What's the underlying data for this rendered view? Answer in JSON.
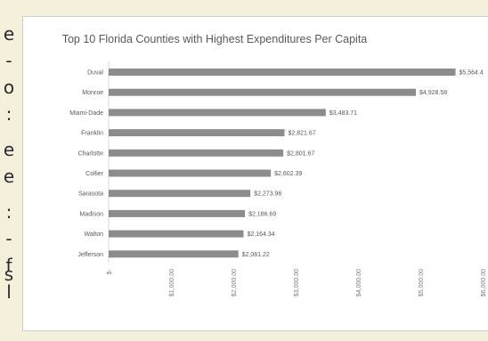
{
  "side_text": [
    "e",
    "-",
    "o",
    ":",
    "e",
    "e",
    ":",
    "-",
    "f",
    "s",
    "l"
  ],
  "chart_data": {
    "type": "bar",
    "orientation": "horizontal",
    "title": "Top 10 Florida Counties with Highest Expenditures Per Capita",
    "xlabel": "",
    "ylabel": "",
    "categories": [
      "Duval",
      "Monroe",
      "Miami-Dade",
      "Franklin",
      "Charlotte",
      "Collier",
      "Sarasota",
      "Madison",
      "Walton",
      "Jefferson"
    ],
    "values": [
      5564.4,
      4928.58,
      3483.71,
      2821.67,
      2801.67,
      2602.39,
      2273.96,
      2186.69,
      2164.34,
      2081.22
    ],
    "value_labels": [
      "$5,564.4",
      "$4,928.58",
      "$3,483.71",
      "$2,821.67",
      "$2,801.67",
      "$2,602.39",
      "$2,273.96",
      "$2,186.69",
      "$2,164.34",
      "$2,081.22"
    ],
    "xlim": [
      0,
      6000
    ],
    "xticks": [
      0,
      1000,
      2000,
      3000,
      4000,
      5000,
      6000
    ],
    "xtick_labels": [
      "$-",
      "$1,000.00",
      "$2,000.00",
      "$3,000.00",
      "$4,000.00",
      "$5,000.00",
      "$6,000.00"
    ],
    "grid": false,
    "legend": "none",
    "bar_color": "#8c8c8c"
  }
}
